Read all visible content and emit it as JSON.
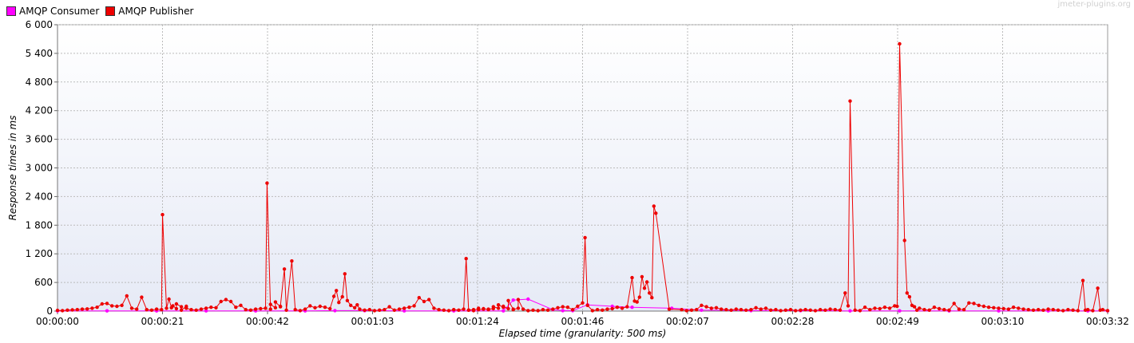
{
  "watermark": "jmeter-plugins.org",
  "colors": {
    "consumer": "#ff00ff",
    "publisher": "#ee0000",
    "grid": "#c0c0c0",
    "plot_bg_top": "#ffffff",
    "plot_bg_bottom": "#e8ecf8"
  },
  "chart_data": {
    "type": "line",
    "xlabel": "Elapsed time (granularity: 500 ms)",
    "ylabel": "Response times in ms",
    "xlim": [
      0,
      212
    ],
    "ylim": [
      0,
      6000
    ],
    "xticks": [
      "00:00:00",
      "00:00:21",
      "00:00:42",
      "00:01:03",
      "00:01:24",
      "00:01:46",
      "00:02:07",
      "00:02:28",
      "00:02:49",
      "00:03:10",
      "00:03:32"
    ],
    "yticks": [
      "0",
      "600",
      "1 200",
      "1 800",
      "2 400",
      "3 000",
      "3 600",
      "4 200",
      "4 800",
      "5 400",
      "6 000"
    ],
    "legend_position": "top-left",
    "grid": true,
    "series": [
      {
        "name": "AMQP Consumer",
        "color": "#ff00ff",
        "points": [
          [
            0,
            5
          ],
          [
            10,
            5
          ],
          [
            20,
            5
          ],
          [
            30,
            5
          ],
          [
            40,
            5
          ],
          [
            50,
            5
          ],
          [
            56,
            10
          ],
          [
            62,
            10
          ],
          [
            70,
            5
          ],
          [
            80,
            5
          ],
          [
            90,
            5
          ],
          [
            92,
            230
          ],
          [
            95,
            250
          ],
          [
            100,
            30
          ],
          [
            102,
            10
          ],
          [
            104,
            10
          ],
          [
            107,
            130
          ],
          [
            112,
            100
          ],
          [
            116,
            80
          ],
          [
            124,
            60
          ],
          [
            130,
            20
          ],
          [
            140,
            10
          ],
          [
            150,
            10
          ],
          [
            160,
            5
          ],
          [
            170,
            5
          ],
          [
            180,
            5
          ],
          [
            190,
            5
          ],
          [
            200,
            5
          ],
          [
            208,
            5
          ],
          [
            212,
            5
          ]
        ]
      },
      {
        "name": "AMQP Publisher",
        "color": "#ee0000",
        "points": [
          [
            0,
            15
          ],
          [
            1,
            10
          ],
          [
            2,
            20
          ],
          [
            3,
            25
          ],
          [
            4,
            30
          ],
          [
            5,
            40
          ],
          [
            6,
            45
          ],
          [
            7,
            60
          ],
          [
            8,
            80
          ],
          [
            9,
            150
          ],
          [
            10,
            160
          ],
          [
            11,
            110
          ],
          [
            12,
            100
          ],
          [
            13,
            120
          ],
          [
            14,
            320
          ],
          [
            15,
            60
          ],
          [
            16,
            40
          ],
          [
            17,
            290
          ],
          [
            18,
            30
          ],
          [
            19,
            20
          ],
          [
            20,
            40
          ],
          [
            21,
            30
          ],
          [
            22,
            60
          ],
          [
            23,
            70
          ],
          [
            24,
            50
          ],
          [
            25,
            90
          ],
          [
            26,
            100
          ],
          [
            21.2,
            2020
          ],
          [
            22.5,
            250
          ],
          [
            23.3,
            110
          ],
          [
            24,
            150
          ],
          [
            25,
            20
          ],
          [
            26,
            60
          ],
          [
            27,
            30
          ],
          [
            28,
            20
          ],
          [
            29,
            40
          ],
          [
            30,
            60
          ],
          [
            31,
            80
          ],
          [
            32,
            70
          ],
          [
            33,
            200
          ],
          [
            34,
            240
          ],
          [
            35,
            200
          ],
          [
            36,
            80
          ],
          [
            37,
            120
          ],
          [
            38,
            30
          ],
          [
            39,
            20
          ],
          [
            40,
            40
          ],
          [
            41,
            50
          ],
          [
            42,
            60
          ],
          [
            43,
            40
          ],
          [
            44,
            70
          ],
          [
            45,
            90
          ],
          [
            42.3,
            2680
          ],
          [
            43,
            140
          ],
          [
            44,
            190
          ],
          [
            45,
            100
          ],
          [
            45.8,
            880
          ],
          [
            46.2,
            20
          ],
          [
            47.3,
            1050
          ],
          [
            48,
            30
          ],
          [
            49,
            10
          ],
          [
            50,
            40
          ],
          [
            51,
            110
          ],
          [
            52,
            70
          ],
          [
            53,
            100
          ],
          [
            54,
            80
          ],
          [
            55,
            50
          ],
          [
            55.8,
            310
          ],
          [
            56.3,
            430
          ],
          [
            56.8,
            180
          ],
          [
            57.5,
            300
          ],
          [
            58,
            780
          ],
          [
            58.5,
            220
          ],
          [
            59.2,
            120
          ],
          [
            60,
            70
          ],
          [
            60.5,
            130
          ],
          [
            61,
            40
          ],
          [
            62,
            20
          ],
          [
            63,
            30
          ],
          [
            64,
            10
          ],
          [
            65,
            20
          ],
          [
            66,
            30
          ],
          [
            67,
            90
          ],
          [
            68,
            20
          ],
          [
            69,
            40
          ],
          [
            70,
            60
          ],
          [
            71,
            80
          ],
          [
            72,
            110
          ],
          [
            73,
            280
          ],
          [
            74,
            200
          ],
          [
            75,
            240
          ],
          [
            76,
            60
          ],
          [
            77,
            30
          ],
          [
            78,
            20
          ],
          [
            79,
            10
          ],
          [
            80,
            30
          ],
          [
            81,
            20
          ],
          [
            82,
            40
          ],
          [
            83,
            20
          ],
          [
            84,
            30
          ],
          [
            85,
            60
          ],
          [
            86,
            40
          ],
          [
            87,
            30
          ],
          [
            88,
            50
          ],
          [
            89,
            60
          ],
          [
            90,
            80
          ],
          [
            91,
            50
          ],
          [
            92,
            40
          ],
          [
            93,
            60
          ],
          [
            82.5,
            1100
          ],
          [
            83,
            20
          ],
          [
            84,
            10
          ],
          [
            85,
            30
          ],
          [
            86,
            50
          ],
          [
            87,
            40
          ],
          [
            88,
            90
          ],
          [
            89,
            130
          ],
          [
            90,
            100
          ],
          [
            91,
            220
          ],
          [
            92,
            30
          ],
          [
            93,
            240
          ],
          [
            94,
            40
          ],
          [
            95,
            10
          ],
          [
            96,
            20
          ],
          [
            97,
            10
          ],
          [
            98,
            30
          ],
          [
            99,
            20
          ],
          [
            100,
            40
          ],
          [
            101,
            70
          ],
          [
            102,
            90
          ],
          [
            103,
            80
          ],
          [
            104,
            30
          ],
          [
            105,
            100
          ],
          [
            106,
            170
          ],
          [
            106.5,
            1540
          ],
          [
            107,
            120
          ],
          [
            108,
            10
          ],
          [
            109,
            30
          ],
          [
            110,
            20
          ],
          [
            111,
            40
          ],
          [
            112,
            50
          ],
          [
            113,
            80
          ],
          [
            114,
            60
          ],
          [
            115,
            90
          ],
          [
            116,
            700
          ],
          [
            116.5,
            210
          ],
          [
            117,
            190
          ],
          [
            117.5,
            290
          ],
          [
            118,
            720
          ],
          [
            118.5,
            480
          ],
          [
            119,
            610
          ],
          [
            119.5,
            380
          ],
          [
            120,
            280
          ],
          [
            120.4,
            2200
          ],
          [
            120.8,
            2050
          ],
          [
            123.5,
            40
          ],
          [
            126,
            30
          ],
          [
            127,
            10
          ],
          [
            128,
            20
          ],
          [
            129,
            30
          ],
          [
            130,
            120
          ],
          [
            131,
            90
          ],
          [
            132,
            60
          ],
          [
            133,
            70
          ],
          [
            134,
            40
          ],
          [
            135,
            30
          ],
          [
            136,
            20
          ],
          [
            137,
            40
          ],
          [
            138,
            30
          ],
          [
            139,
            20
          ],
          [
            140,
            30
          ],
          [
            141,
            70
          ],
          [
            142,
            40
          ],
          [
            143,
            60
          ],
          [
            144,
            20
          ],
          [
            145,
            30
          ],
          [
            146,
            10
          ],
          [
            147,
            20
          ],
          [
            148,
            30
          ],
          [
            149,
            10
          ],
          [
            150,
            20
          ],
          [
            151,
            30
          ],
          [
            152,
            20
          ],
          [
            153,
            10
          ],
          [
            154,
            30
          ],
          [
            155,
            20
          ],
          [
            156,
            40
          ],
          [
            157,
            30
          ],
          [
            158,
            20
          ],
          [
            159,
            380
          ],
          [
            159.6,
            110
          ],
          [
            160,
            4400
          ],
          [
            161,
            20
          ],
          [
            162,
            10
          ],
          [
            163,
            80
          ],
          [
            164,
            30
          ],
          [
            165,
            60
          ],
          [
            166,
            50
          ],
          [
            167,
            80
          ],
          [
            168,
            60
          ],
          [
            169,
            110
          ],
          [
            169.5,
            100
          ],
          [
            170,
            5600
          ],
          [
            171,
            1480
          ],
          [
            171.5,
            380
          ],
          [
            172,
            300
          ],
          [
            172.5,
            120
          ],
          [
            173,
            90
          ],
          [
            173.5,
            20
          ],
          [
            174,
            60
          ],
          [
            175,
            30
          ],
          [
            176,
            20
          ],
          [
            177,
            80
          ],
          [
            178,
            50
          ],
          [
            179,
            30
          ],
          [
            180,
            20
          ],
          [
            181,
            160
          ],
          [
            182,
            40
          ],
          [
            183,
            30
          ],
          [
            184,
            170
          ],
          [
            185,
            160
          ],
          [
            186,
            120
          ],
          [
            187,
            100
          ],
          [
            188,
            80
          ],
          [
            189,
            70
          ],
          [
            190,
            60
          ],
          [
            191,
            50
          ],
          [
            192,
            40
          ],
          [
            193,
            80
          ],
          [
            194,
            60
          ],
          [
            195,
            40
          ],
          [
            196,
            30
          ],
          [
            197,
            20
          ],
          [
            198,
            30
          ],
          [
            199,
            20
          ],
          [
            200,
            40
          ],
          [
            201,
            30
          ],
          [
            202,
            20
          ],
          [
            203,
            10
          ],
          [
            204,
            30
          ],
          [
            205,
            20
          ],
          [
            206,
            10
          ],
          [
            207,
            640
          ],
          [
            207.5,
            20
          ],
          [
            208,
            30
          ],
          [
            209,
            10
          ],
          [
            210,
            480
          ],
          [
            210.5,
            20
          ],
          [
            211,
            30
          ],
          [
            212,
            10
          ]
        ]
      }
    ]
  }
}
